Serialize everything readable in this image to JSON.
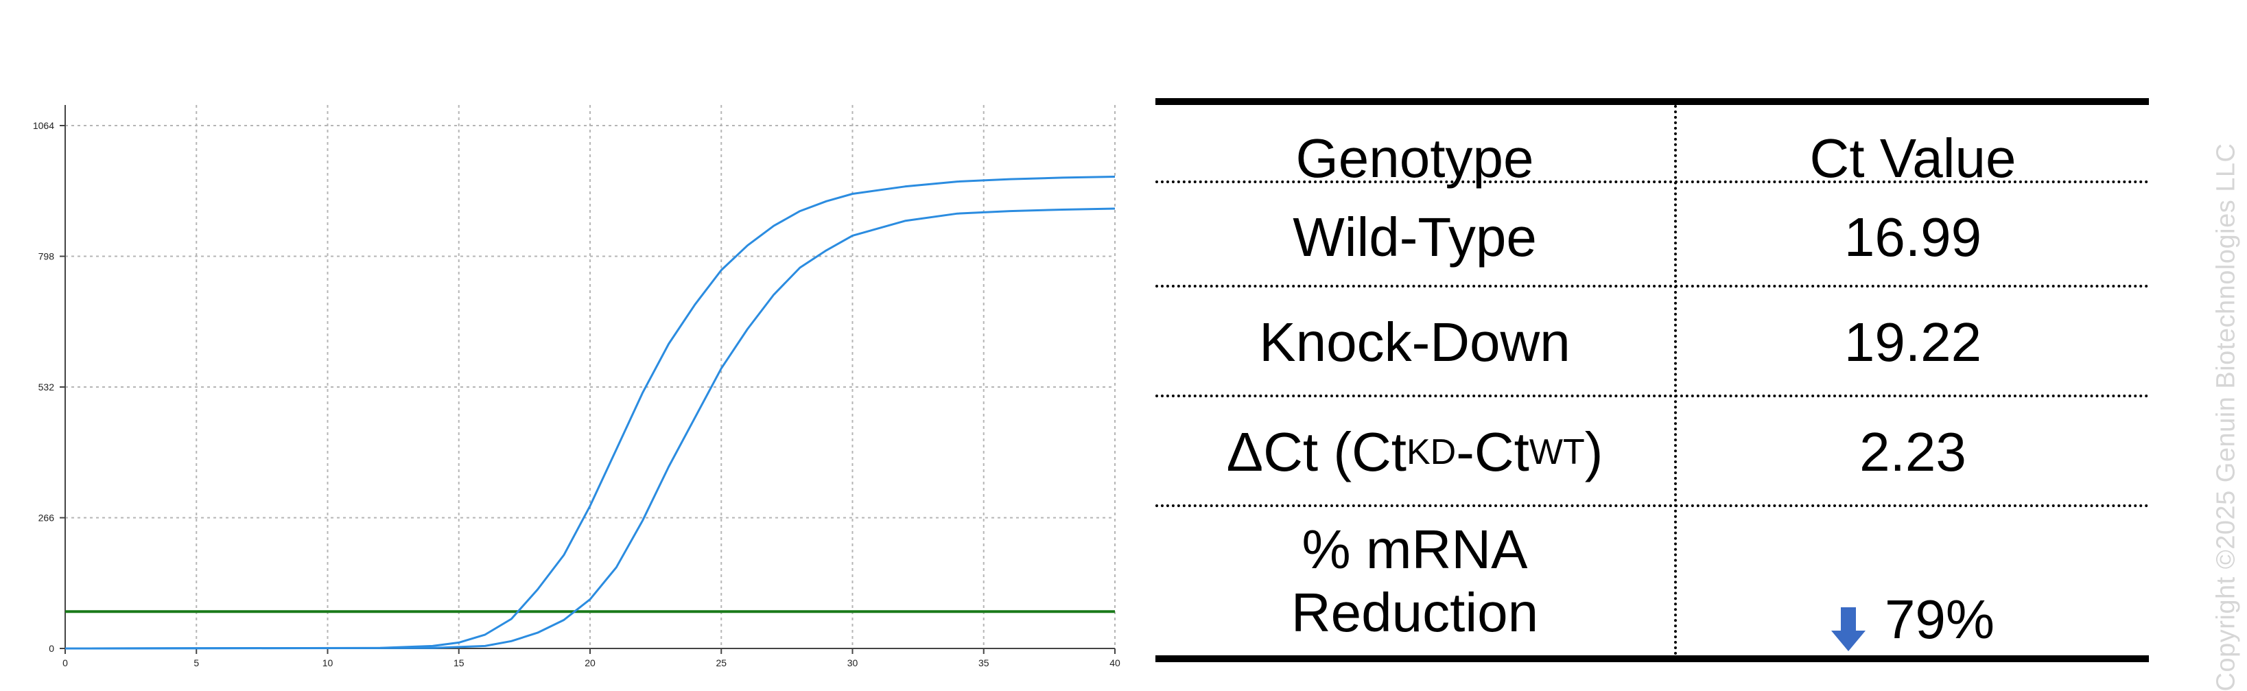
{
  "chart_data": {
    "type": "line",
    "title": "",
    "xlabel": "",
    "ylabel": "",
    "xlim": [
      0,
      40
    ],
    "ylim": [
      0,
      1064
    ],
    "x_ticks": [
      "0",
      "5",
      "10",
      "15",
      "20",
      "25",
      "30",
      "35",
      "40"
    ],
    "y_ticks": [
      "0",
      "266",
      "532",
      "798",
      "1064"
    ],
    "grid": true,
    "threshold": {
      "y": 75,
      "color": "#1a7a1a"
    },
    "series_color": "#2b8ce0",
    "series": [
      {
        "x": [
          0,
          12,
          14,
          15,
          16,
          17,
          18,
          19,
          20,
          21,
          22,
          23,
          24,
          25,
          26,
          27,
          28,
          29,
          30,
          32,
          34,
          36,
          38,
          40
        ],
        "y": [
          0,
          1,
          5,
          12,
          28,
          60,
          120,
          190,
          290,
          405,
          520,
          620,
          700,
          770,
          820,
          860,
          890,
          910,
          925,
          940,
          950,
          955,
          958,
          960
        ]
      },
      {
        "x": [
          0,
          14,
          16,
          17,
          18,
          19,
          20,
          21,
          22,
          23,
          24,
          25,
          26,
          27,
          28,
          29,
          30,
          32,
          34,
          36,
          38,
          40
        ],
        "y": [
          0,
          1,
          5,
          15,
          32,
          58,
          100,
          165,
          260,
          370,
          470,
          570,
          650,
          720,
          775,
          810,
          840,
          870,
          885,
          890,
          893,
          895
        ]
      }
    ]
  },
  "table": {
    "headers": [
      "Genotype",
      "Ct Value"
    ],
    "rows": [
      {
        "label": "Wild-Type",
        "value": "16.99"
      },
      {
        "label": "Knock-Down",
        "value": "19.22"
      },
      {
        "label_main": "ΔCt (Ct",
        "sub1": "KD",
        "dash": "-Ct",
        "sub2": "WT",
        "close": ")",
        "value": "2.23"
      },
      {
        "label_line1": "% mRNA",
        "label_line2": "Reduction",
        "value": "79%",
        "arrow_icon": "down-arrow-icon",
        "arrow_color": "#3a6bc4"
      }
    ]
  },
  "copyright": "Copyright ©2025 Genuin Biotechnologies LLC"
}
